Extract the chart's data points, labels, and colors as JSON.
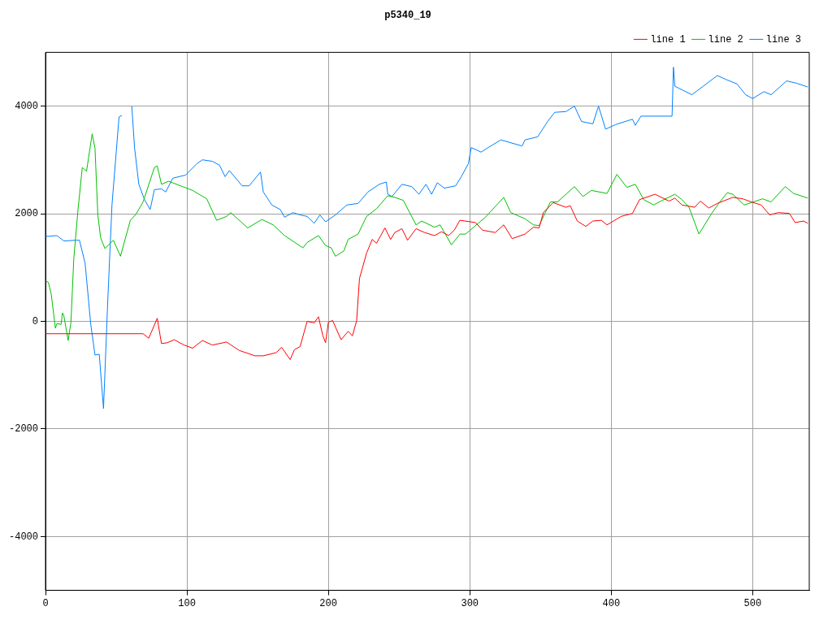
{
  "chart_data": {
    "type": "line",
    "title": "p5340_19",
    "xlim": [
      0,
      540
    ],
    "xticks": [
      0,
      100,
      200,
      300,
      400,
      500
    ],
    "ylim": [
      -5000,
      5000
    ],
    "yticks": [
      -4000,
      -2000,
      0,
      2000,
      4000
    ],
    "grid": true,
    "legend": "top right",
    "marker": "none",
    "line_style": "solid",
    "series": [
      {
        "name": "line 1",
        "color": "#ff0000",
        "x": [
          0,
          69,
          73,
          79,
          82,
          86,
          91,
          98,
          104,
          111,
          118,
          128,
          137,
          148,
          154,
          163,
          167,
          173,
          176,
          180,
          185,
          190,
          193,
          196,
          198,
          200,
          203,
          209,
          214,
          217,
          220,
          222,
          227,
          231,
          234,
          240,
          244,
          247,
          252,
          256,
          262,
          268,
          275,
          280,
          285,
          289,
          293,
          304,
          309,
          318,
          324,
          330,
          339,
          345,
          349,
          352,
          359,
          368,
          371,
          376,
          382,
          387,
          393,
          397,
          407,
          415,
          420,
          431,
          441,
          445,
          450,
          459,
          463,
          469,
          475,
          486,
          493,
          499,
          506,
          512,
          518,
          526,
          530,
          536,
          539
        ],
        "values": [
          -230,
          -230,
          -313,
          57,
          -413,
          -398,
          -342,
          -441,
          -498,
          -356,
          -441,
          -384,
          -541,
          -640,
          -640,
          -583,
          -484,
          -711,
          -527,
          -470,
          0,
          -28,
          85,
          -256,
          -398,
          -14,
          14,
          -342,
          -185,
          -270,
          14,
          797,
          1266,
          1523,
          1451,
          1736,
          1523,
          1651,
          1722,
          1508,
          1722,
          1651,
          1594,
          1665,
          1594,
          1694,
          1878,
          1836,
          1694,
          1651,
          1793,
          1537,
          1622,
          1750,
          1736,
          2021,
          2206,
          2120,
          2149,
          1864,
          1765,
          1864,
          1878,
          1793,
          1950,
          2006,
          2262,
          2362,
          2234,
          2291,
          2163,
          2120,
          2234,
          2106,
          2191,
          2305,
          2277,
          2220,
          2163,
          1978,
          2021,
          2006,
          1836,
          1864,
          1822
        ]
      },
      {
        "name": "line 2",
        "color": "#00c000",
        "x": [
          0,
          2,
          4,
          7,
          8,
          11,
          12,
          13,
          16,
          18,
          20,
          23,
          26,
          29,
          33,
          35,
          37,
          39,
          42,
          48,
          53,
          60,
          64,
          69,
          77,
          79,
          82,
          87,
          97,
          104,
          114,
          121,
          128,
          131,
          143,
          153,
          161,
          169,
          182,
          185,
          193,
          198,
          202,
          205,
          211,
          214,
          221,
          227,
          234,
          242,
          247,
          253,
          262,
          266,
          275,
          279,
          287,
          293,
          297,
          311,
          324,
          329,
          339,
          345,
          349,
          357,
          362,
          374,
          380,
          386,
          397,
          404,
          411,
          417,
          423,
          430,
          435,
          445,
          450,
          455,
          462,
          471,
          476,
          482,
          486,
          494,
          507,
          513,
          523,
          529,
          539
        ],
        "values": [
          750,
          726,
          512,
          -128,
          -43,
          -57,
          157,
          100,
          -356,
          -14,
          1167,
          2078,
          2860,
          2789,
          3486,
          3216,
          1978,
          1551,
          1352,
          1508,
          1210,
          1878,
          1992,
          2220,
          2860,
          2889,
          2547,
          2604,
          2504,
          2433,
          2277,
          1878,
          1950,
          2021,
          1736,
          1893,
          1793,
          1594,
          1366,
          1466,
          1594,
          1409,
          1366,
          1210,
          1309,
          1523,
          1622,
          1950,
          2092,
          2334,
          2305,
          2248,
          1793,
          1864,
          1750,
          1793,
          1423,
          1622,
          1622,
          1935,
          2305,
          2021,
          1907,
          1793,
          1779,
          2220,
          2220,
          2504,
          2320,
          2433,
          2377,
          2732,
          2490,
          2547,
          2262,
          2163,
          2234,
          2362,
          2262,
          2120,
          1622,
          2006,
          2191,
          2391,
          2362,
          2163,
          2277,
          2220,
          2504,
          2377,
          2291
        ]
      },
      {
        "name": "line 3",
        "color": "#0080ff",
        "x": [
          0,
          2,
          8,
          13,
          22,
          24,
          28,
          32,
          35,
          38,
          41,
          44,
          47,
          52,
          54,
          56,
          59,
          61,
          63,
          66,
          70,
          74,
          77,
          82,
          85,
          90,
          99,
          107,
          111,
          118,
          123,
          127,
          130,
          139,
          144,
          152,
          154,
          160,
          166,
          169,
          175,
          180,
          185,
          190,
          194,
          198,
          205,
          213,
          221,
          228,
          236,
          241,
          242,
          245,
          252,
          259,
          264,
          269,
          273,
          277,
          282,
          290,
          294,
          299,
          301,
          308,
          313,
          322,
          337,
          339,
          348,
          355,
          360,
          368,
          374,
          379,
          387,
          391,
          396,
          403,
          415,
          417,
          421,
          443,
          444,
          445,
          457,
          465,
          475,
          481,
          489,
          495,
          500,
          508,
          513,
          524,
          531,
          539
        ],
        "values": [
          1580,
          1580,
          1594,
          1494,
          1508,
          1508,
          1081,
          -57,
          -626,
          -612,
          -1622,
          370,
          2163,
          3800,
          3828,
          null,
          null,
          3999,
          3216,
          2547,
          2262,
          2078,
          2448,
          2462,
          2405,
          2661,
          2718,
          2931,
          3002,
          2974,
          2903,
          2689,
          2803,
          2519,
          2519,
          2775,
          2405,
          2163,
          2078,
          1935,
          2021,
          1978,
          1950,
          1822,
          1978,
          1850,
          1978,
          2163,
          2191,
          2405,
          2547,
          2590,
          2362,
          2320,
          2547,
          2504,
          2362,
          2547,
          2362,
          2576,
          2476,
          2519,
          2689,
          2931,
          3230,
          3145,
          3230,
          3372,
          3259,
          3372,
          3430,
          3714,
          3885,
          3899,
          3999,
          3714,
          3671,
          3999,
          3572,
          3657,
          3757,
          3643,
          3814,
          3814,
          4724,
          4369,
          4212,
          4369,
          4568,
          4497,
          4411,
          4212,
          4141,
          4269,
          4212,
          4469,
          4426,
          4355
        ]
      }
    ]
  }
}
